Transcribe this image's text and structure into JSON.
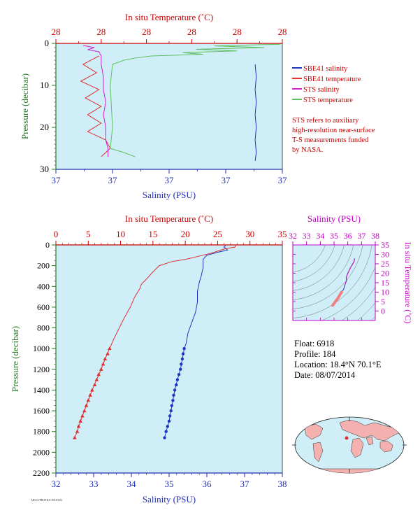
{
  "top_panel": {
    "top_axis_label": "In situ Temperature (˚C)",
    "bottom_axis_label": "Salinity (PSU)",
    "left_axis_label": "Pressure (decibar)",
    "top_tick_labels": [
      "28",
      "28",
      "28",
      "28",
      "28",
      "28"
    ],
    "bottom_tick_labels": [
      "37",
      "37",
      "37",
      "37",
      "37"
    ],
    "left_tick_labels": [
      "0",
      "10",
      "20",
      "30"
    ],
    "legend": [
      {
        "label": "SBE41 salinity",
        "color": "#2036c0"
      },
      {
        "label": "SBE41 temperature",
        "color": "#e03030"
      },
      {
        "label": "STS salinity",
        "color": "#d020d0"
      },
      {
        "label": "STS temperature",
        "color": "#60c060"
      }
    ],
    "note": [
      "STS refers to auxiliary",
      "high-resolution near-surface",
      "T-S measurements funded",
      "by NASA."
    ]
  },
  "main_panel": {
    "top_axis_label": "In situ Temperature (˚C)",
    "bottom_axis_label": "Salinity (PSU)",
    "left_axis_label": "Pressure (decibar)"
  },
  "ts_panel": {
    "top_axis_label": "Salinity (PSU)",
    "right_axis_label": "In situ Temperature (˚C)"
  },
  "info": {
    "float": "Float:  6918",
    "profile": "Profile:  184",
    "location": "Location:  18.4°N  70.1°E",
    "date": "Date:  08/07/2014"
  },
  "footer_note": "ARGO/PROFILE 6918/184",
  "colors": {
    "plot_bg": "#cfeef8",
    "salinity": "#2036c0",
    "temperature": "#e03030",
    "sts_salinity": "#d020d0",
    "sts_temperature": "#60c060",
    "sts_temperature_dark": "#f09090",
    "temp_axis": "#cc0000",
    "sal_axis": "#2030b0",
    "pressure_axis": "#2a7a2a",
    "ts_axis": "#c000c0"
  },
  "chart_data": [
    {
      "type": "line",
      "id": "main-profile",
      "ylabel": "Pressure (decibar)",
      "ylim": [
        2200,
        0
      ],
      "salinity_xlim": [
        32,
        38
      ],
      "temperature_xlim": [
        0,
        35
      ],
      "salinity_ticks": [
        32,
        33,
        34,
        35,
        36,
        37,
        38
      ],
      "temperature_ticks": [
        0,
        5,
        10,
        15,
        20,
        25,
        30,
        35
      ],
      "pressure_ticks": [
        0,
        200,
        400,
        600,
        800,
        1000,
        1200,
        1400,
        1600,
        1800,
        2000,
        2200
      ],
      "series": [
        {
          "name": "SBE41 salinity",
          "axis": "salinity",
          "points": [
            [
              36.5,
              5
            ],
            [
              36.45,
              20
            ],
            [
              36.55,
              50
            ],
            [
              36.3,
              70
            ],
            [
              36.0,
              100
            ],
            [
              35.9,
              140
            ],
            [
              35.9,
              220
            ],
            [
              35.85,
              300
            ],
            [
              35.8,
              360
            ],
            [
              35.75,
              450
            ],
            [
              35.75,
              550
            ],
            [
              35.7,
              650
            ],
            [
              35.6,
              750
            ],
            [
              35.5,
              850
            ],
            [
              35.45,
              950
            ],
            [
              35.4,
              1000
            ],
            [
              35.35,
              1100
            ],
            [
              35.3,
              1200
            ],
            [
              35.22,
              1300
            ],
            [
              35.15,
              1400
            ],
            [
              35.1,
              1500
            ],
            [
              35.05,
              1600
            ],
            [
              35.0,
              1700
            ],
            [
              34.92,
              1800
            ],
            [
              34.88,
              1860
            ]
          ],
          "markers": [
            [
              35.4,
              1000
            ],
            [
              35.37,
              1050
            ],
            [
              35.35,
              1100
            ],
            [
              35.32,
              1150
            ],
            [
              35.3,
              1200
            ],
            [
              35.26,
              1250
            ],
            [
              35.22,
              1300
            ],
            [
              35.19,
              1350
            ],
            [
              35.15,
              1400
            ],
            [
              35.12,
              1450
            ],
            [
              35.1,
              1500
            ],
            [
              35.07,
              1550
            ],
            [
              35.05,
              1600
            ],
            [
              35.02,
              1650
            ],
            [
              35.0,
              1700
            ],
            [
              34.96,
              1750
            ],
            [
              34.92,
              1800
            ],
            [
              34.88,
              1860
            ]
          ]
        },
        {
          "name": "SBE41 temperature",
          "axis": "temperature",
          "points": [
            [
              27.8,
              5
            ],
            [
              27.7,
              20
            ],
            [
              26.0,
              40
            ],
            [
              25.0,
              60
            ],
            [
              24.0,
              80
            ],
            [
              22.0,
              110
            ],
            [
              20.0,
              140
            ],
            [
              18.0,
              160
            ],
            [
              16.0,
              200
            ],
            [
              15.0,
              260
            ],
            [
              14.0,
              330
            ],
            [
              13.2,
              380
            ],
            [
              13.0,
              420
            ],
            [
              12.2,
              500
            ],
            [
              11.5,
              600
            ],
            [
              10.6,
              700
            ],
            [
              9.8,
              800
            ],
            [
              9.0,
              900
            ],
            [
              8.3,
              1000
            ],
            [
              7.6,
              1100
            ],
            [
              7.0,
              1200
            ],
            [
              6.3,
              1300
            ],
            [
              5.6,
              1400
            ],
            [
              5.0,
              1500
            ],
            [
              4.4,
              1600
            ],
            [
              3.8,
              1700
            ],
            [
              3.3,
              1800
            ],
            [
              2.9,
              1860
            ]
          ],
          "markers": [
            [
              8.3,
              1000
            ],
            [
              8.0,
              1050
            ],
            [
              7.6,
              1100
            ],
            [
              7.3,
              1150
            ],
            [
              7.0,
              1200
            ],
            [
              6.6,
              1250
            ],
            [
              6.3,
              1300
            ],
            [
              6.0,
              1350
            ],
            [
              5.6,
              1400
            ],
            [
              5.3,
              1450
            ],
            [
              5.0,
              1500
            ],
            [
              4.7,
              1550
            ],
            [
              4.4,
              1600
            ],
            [
              4.1,
              1650
            ],
            [
              3.8,
              1700
            ],
            [
              3.5,
              1750
            ],
            [
              3.3,
              1800
            ],
            [
              2.9,
              1860
            ]
          ]
        }
      ]
    },
    {
      "type": "line",
      "id": "ts-diagram",
      "xlabel": "Salinity (PSU)",
      "ylabel": "In situ Temperature (˚C)",
      "xlim": [
        32,
        38
      ],
      "ylim": [
        -5,
        35
      ],
      "x_ticks": [
        32,
        33,
        34,
        35,
        36,
        37,
        38
      ],
      "y_ticks": [
        0,
        5,
        10,
        15,
        20,
        25,
        30,
        35
      ],
      "series": [
        {
          "name": "T-S",
          "points": [
            [
              34.9,
              3.0
            ],
            [
              35.0,
              4.0
            ],
            [
              35.1,
              5.0
            ],
            [
              35.2,
              6.0
            ],
            [
              35.3,
              7.0
            ],
            [
              35.4,
              8.3
            ],
            [
              35.55,
              10.0
            ],
            [
              35.7,
              11.5
            ],
            [
              35.75,
              13.0
            ],
            [
              35.8,
              14.0
            ],
            [
              35.85,
              15.0
            ],
            [
              35.9,
              16.0
            ],
            [
              35.9,
              18.0
            ],
            [
              36.0,
              20.0
            ],
            [
              36.2,
              23.0
            ],
            [
              36.45,
              26.0
            ],
            [
              36.5,
              27.8
            ]
          ]
        }
      ]
    },
    {
      "type": "line",
      "id": "near-surface",
      "ylabel": "Pressure (decibar)",
      "ylim": [
        30,
        0
      ],
      "series": [
        {
          "name": "SBE41 salinity",
          "points": [
            [
              0.88,
              5
            ],
            [
              0.885,
              8
            ],
            [
              0.88,
              11
            ],
            [
              0.885,
              14
            ],
            [
              0.88,
              17
            ],
            [
              0.885,
              20
            ],
            [
              0.88,
              23
            ],
            [
              0.885,
              26
            ],
            [
              0.88,
              28
            ]
          ]
        },
        {
          "name": "SBE41 temperature",
          "points": [
            [
              0.19,
              3
            ],
            [
              0.12,
              5
            ],
            [
              0.18,
              7
            ],
            [
              0.11,
              9
            ],
            [
              0.19,
              11
            ],
            [
              0.13,
              13
            ],
            [
              0.2,
              15
            ],
            [
              0.14,
              17
            ],
            [
              0.2,
              19
            ],
            [
              0.14,
              21
            ],
            [
              0.22,
              23
            ],
            [
              0.24,
              25
            ],
            [
              0.2,
              27
            ]
          ]
        },
        {
          "name": "STS salinity",
          "points": [
            [
              0.12,
              0.5
            ],
            [
              0.17,
              1.0
            ],
            [
              0.14,
              1.5
            ],
            [
              0.19,
              2.0
            ],
            [
              0.2,
              3.0
            ],
            [
              0.2,
              5.0
            ],
            [
              0.21,
              8
            ],
            [
              0.21,
              11
            ],
            [
              0.22,
              14
            ],
            [
              0.21,
              17
            ],
            [
              0.22,
              20
            ],
            [
              0.22,
              23
            ],
            [
              0.23,
              25
            ],
            [
              0.23,
              27
            ]
          ]
        },
        {
          "name": "STS temperature",
          "points": [
            [
              0.99,
              0.2
            ],
            [
              0.7,
              0.6
            ],
            [
              0.92,
              1.0
            ],
            [
              0.62,
              1.4
            ],
            [
              0.8,
              1.8
            ],
            [
              0.56,
              2.2
            ],
            [
              0.65,
              2.6
            ],
            [
              0.42,
              3.0
            ],
            [
              0.35,
              3.5
            ],
            [
              0.3,
              4.0
            ],
            [
              0.25,
              5.0
            ],
            [
              0.24,
              10
            ],
            [
              0.25,
              20
            ],
            [
              0.24,
              25
            ],
            [
              0.3,
              26
            ],
            [
              0.35,
              27
            ]
          ]
        }
      ]
    }
  ]
}
